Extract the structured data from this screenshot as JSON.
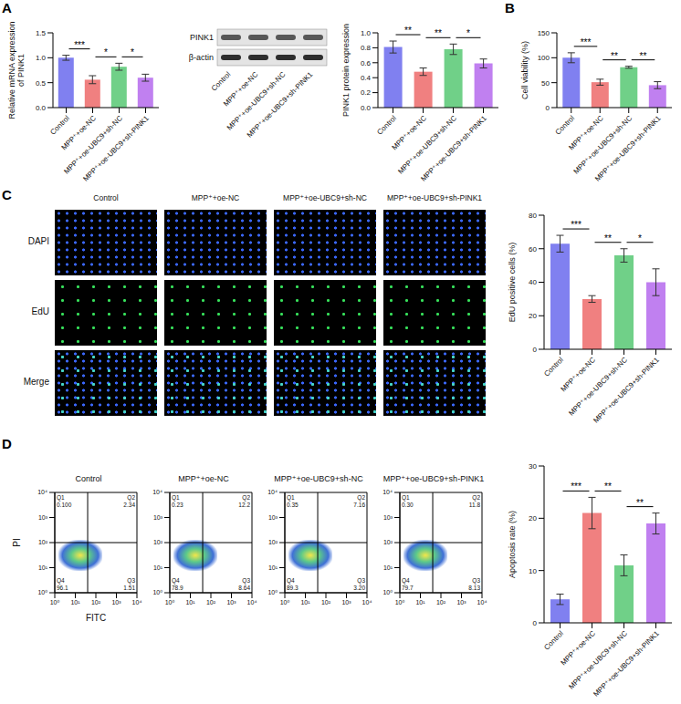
{
  "panel_letters": [
    "A",
    "B",
    "C",
    "D"
  ],
  "chart_data": [
    {
      "type": "bar",
      "categories": [
        "Control",
        "MPP⁺+oe-NC",
        "MPP⁺+oe-UBC9+sh-NC",
        "MPP⁺+oe-UBC9+sh-PINK1"
      ],
      "values": [
        1.0,
        0.56,
        0.82,
        0.6
      ],
      "error": [
        0.05,
        0.08,
        0.07,
        0.07
      ],
      "colors": [
        "#8080f0",
        "#f08080",
        "#70d088",
        "#c080f0"
      ],
      "ylabel": "Relative mRNA expression of PINK1",
      "ylim": [
        0,
        1.5
      ],
      "yticks": [
        {
          "value": 0,
          "label": "0.0"
        },
        0.5,
        {
          "value": 1,
          "label": "1.0"
        },
        1.5
      ],
      "significance": [
        {
          "from": 0,
          "to": 1,
          "label": "***"
        },
        {
          "from": 1,
          "to": 2,
          "label": "*"
        },
        {
          "from": 2,
          "to": 3,
          "label": "*"
        }
      ]
    },
    {
      "type": "bar",
      "categories": [
        "Control",
        "MPP⁺+oe-NC",
        "MPP⁺+oe-UBC9+sh-NC",
        "MPP⁺+oe-UBC9+sh-PINK1"
      ],
      "values": [
        0.81,
        0.48,
        0.78,
        0.59
      ],
      "error": [
        0.08,
        0.05,
        0.07,
        0.06
      ],
      "colors": [
        "#8080f0",
        "#f08080",
        "#70d088",
        "#c080f0"
      ],
      "ylabel": "PINK1 protein expression",
      "ylim": [
        0,
        1
      ],
      "yticks": [
        {
          "value": 0,
          "label": "0.0"
        },
        0.2,
        0.4,
        0.6,
        0.8,
        {
          "value": 1,
          "label": "1.0"
        }
      ],
      "significance": [
        {
          "from": 0,
          "to": 1,
          "label": "**"
        },
        {
          "from": 1,
          "to": 2,
          "label": "**"
        },
        {
          "from": 2,
          "to": 3,
          "label": "*"
        }
      ]
    },
    {
      "type": "bar",
      "categories": [
        "Control",
        "MPP⁺+oe-NC",
        "MPP⁺+oe-UBC9+sh-NC",
        "MPP⁺+oe-UBC9+sh-PINK1"
      ],
      "values": [
        100,
        51,
        81,
        45
      ],
      "error": [
        10,
        6,
        2,
        7
      ],
      "colors": [
        "#8080f0",
        "#f08080",
        "#70d088",
        "#c080f0"
      ],
      "ylabel": "Cell viability (%)",
      "ylim": [
        0,
        150
      ],
      "yticks": [
        0,
        50,
        100,
        150
      ],
      "significance": [
        {
          "from": 0,
          "to": 1,
          "label": "***"
        },
        {
          "from": 1,
          "to": 2,
          "label": "**"
        },
        {
          "from": 2,
          "to": 3,
          "label": "**"
        }
      ]
    },
    {
      "type": "bar",
      "categories": [
        "Control",
        "MPP⁺+oe-NC",
        "MPP⁺+oe-UBC9+sh-NC",
        "MPP⁺+oe-UBC9+sh-PINK1"
      ],
      "values": [
        63,
        30,
        56,
        40
      ],
      "error": [
        5,
        2,
        4,
        8
      ],
      "colors": [
        "#8080f0",
        "#f08080",
        "#70d088",
        "#c080f0"
      ],
      "ylabel": "EdU positive cells (%)",
      "ylim": [
        0,
        80
      ],
      "yticks": [
        0,
        20,
        40,
        60,
        80
      ],
      "significance": [
        {
          "from": 0,
          "to": 1,
          "label": "***"
        },
        {
          "from": 1,
          "to": 2,
          "label": "**"
        },
        {
          "from": 2,
          "to": 3,
          "label": "*"
        }
      ]
    },
    {
      "type": "bar",
      "categories": [
        "Control",
        "MPP⁺+oe-NC",
        "MPP⁺+oe-UBC9+sh-NC",
        "MPP⁺+oe-UBC9+sh-PINK1"
      ],
      "values": [
        4.5,
        21,
        11,
        19
      ],
      "error": [
        1,
        3,
        2,
        2
      ],
      "colors": [
        "#8080f0",
        "#f08080",
        "#70d088",
        "#c080f0"
      ],
      "ylabel": "Apoptosis rate (%)",
      "ylim": [
        0,
        30
      ],
      "yticks": [
        0,
        10,
        20,
        30
      ],
      "significance": [
        {
          "from": 0,
          "to": 1,
          "label": "***"
        },
        {
          "from": 1,
          "to": 2,
          "label": "**"
        },
        {
          "from": 2,
          "to": 3,
          "label": "**"
        }
      ]
    }
  ],
  "western_blot": {
    "rows": [
      "PINK1",
      "β-actin"
    ],
    "lanes": [
      "Control",
      "MPP⁺+oe-NC",
      "MPP⁺+oe-UBC9+sh-NC",
      "MPP⁺+oe-UBC9+sh-PINK1"
    ]
  },
  "image_panel": {
    "rows": [
      "DAPI",
      "EdU",
      "Merge"
    ],
    "columns": [
      "Control",
      "MPP⁺+oe-NC",
      "MPP⁺+oe-UBC9+sh-NC",
      "MPP⁺+oe-UBC9+sh-PINK1"
    ]
  },
  "flow_cytometry": {
    "xlabel": "FITC",
    "ylabel": "PI",
    "log": true,
    "xlim": [
      1,
      10000
    ],
    "ylim": [
      1,
      10000
    ],
    "xticks": [
      {
        "value": 1,
        "label": "10⁰"
      },
      {
        "value": 10,
        "label": "10¹"
      },
      {
        "value": 100,
        "label": "10²"
      },
      {
        "value": 1000,
        "label": "10³"
      },
      {
        "value": 10000,
        "label": "10⁴"
      }
    ],
    "yticks": [
      {
        "value": 1,
        "label": "10⁰"
      },
      {
        "value": 10,
        "label": "10¹"
      },
      {
        "value": 100,
        "label": "10²"
      },
      {
        "value": 1000,
        "label": "10³"
      },
      {
        "value": 10000,
        "label": "10⁴"
      }
    ],
    "gate_x": 40,
    "gate_y": 100,
    "plots": [
      {
        "title": "Control",
        "quadrants": [
          {
            "name": "Q1",
            "value": 0.1,
            "label": "0.100"
          },
          {
            "name": "Q2",
            "value": 2.34
          },
          {
            "name": "Q3",
            "value": 1.51
          },
          {
            "name": "Q4",
            "value": 96.1
          }
        ]
      },
      {
        "title": "MPP⁺+oe-NC",
        "quadrants": [
          {
            "name": "Q1",
            "value": 0.23
          },
          {
            "name": "Q2",
            "value": 12.2
          },
          {
            "name": "Q3",
            "value": 8.64
          },
          {
            "name": "Q4",
            "value": 78.9
          }
        ]
      },
      {
        "title": "MPP⁺+oe-UBC9+sh-NC",
        "quadrants": [
          {
            "name": "Q1",
            "value": 0.35
          },
          {
            "name": "Q2",
            "value": 7.16
          },
          {
            "name": "Q3",
            "value": 3.2,
            "label": "3.20"
          },
          {
            "name": "Q4",
            "value": 89.3
          }
        ]
      },
      {
        "title": "MPP⁺+oe-UBC9+sh-PINK1",
        "quadrants": [
          {
            "name": "Q1",
            "value": 0.3,
            "label": "0.30"
          },
          {
            "name": "Q2",
            "value": 11.8
          },
          {
            "name": "Q3",
            "value": 8.13
          },
          {
            "name": "Q4",
            "value": 79.7
          }
        ]
      }
    ]
  }
}
